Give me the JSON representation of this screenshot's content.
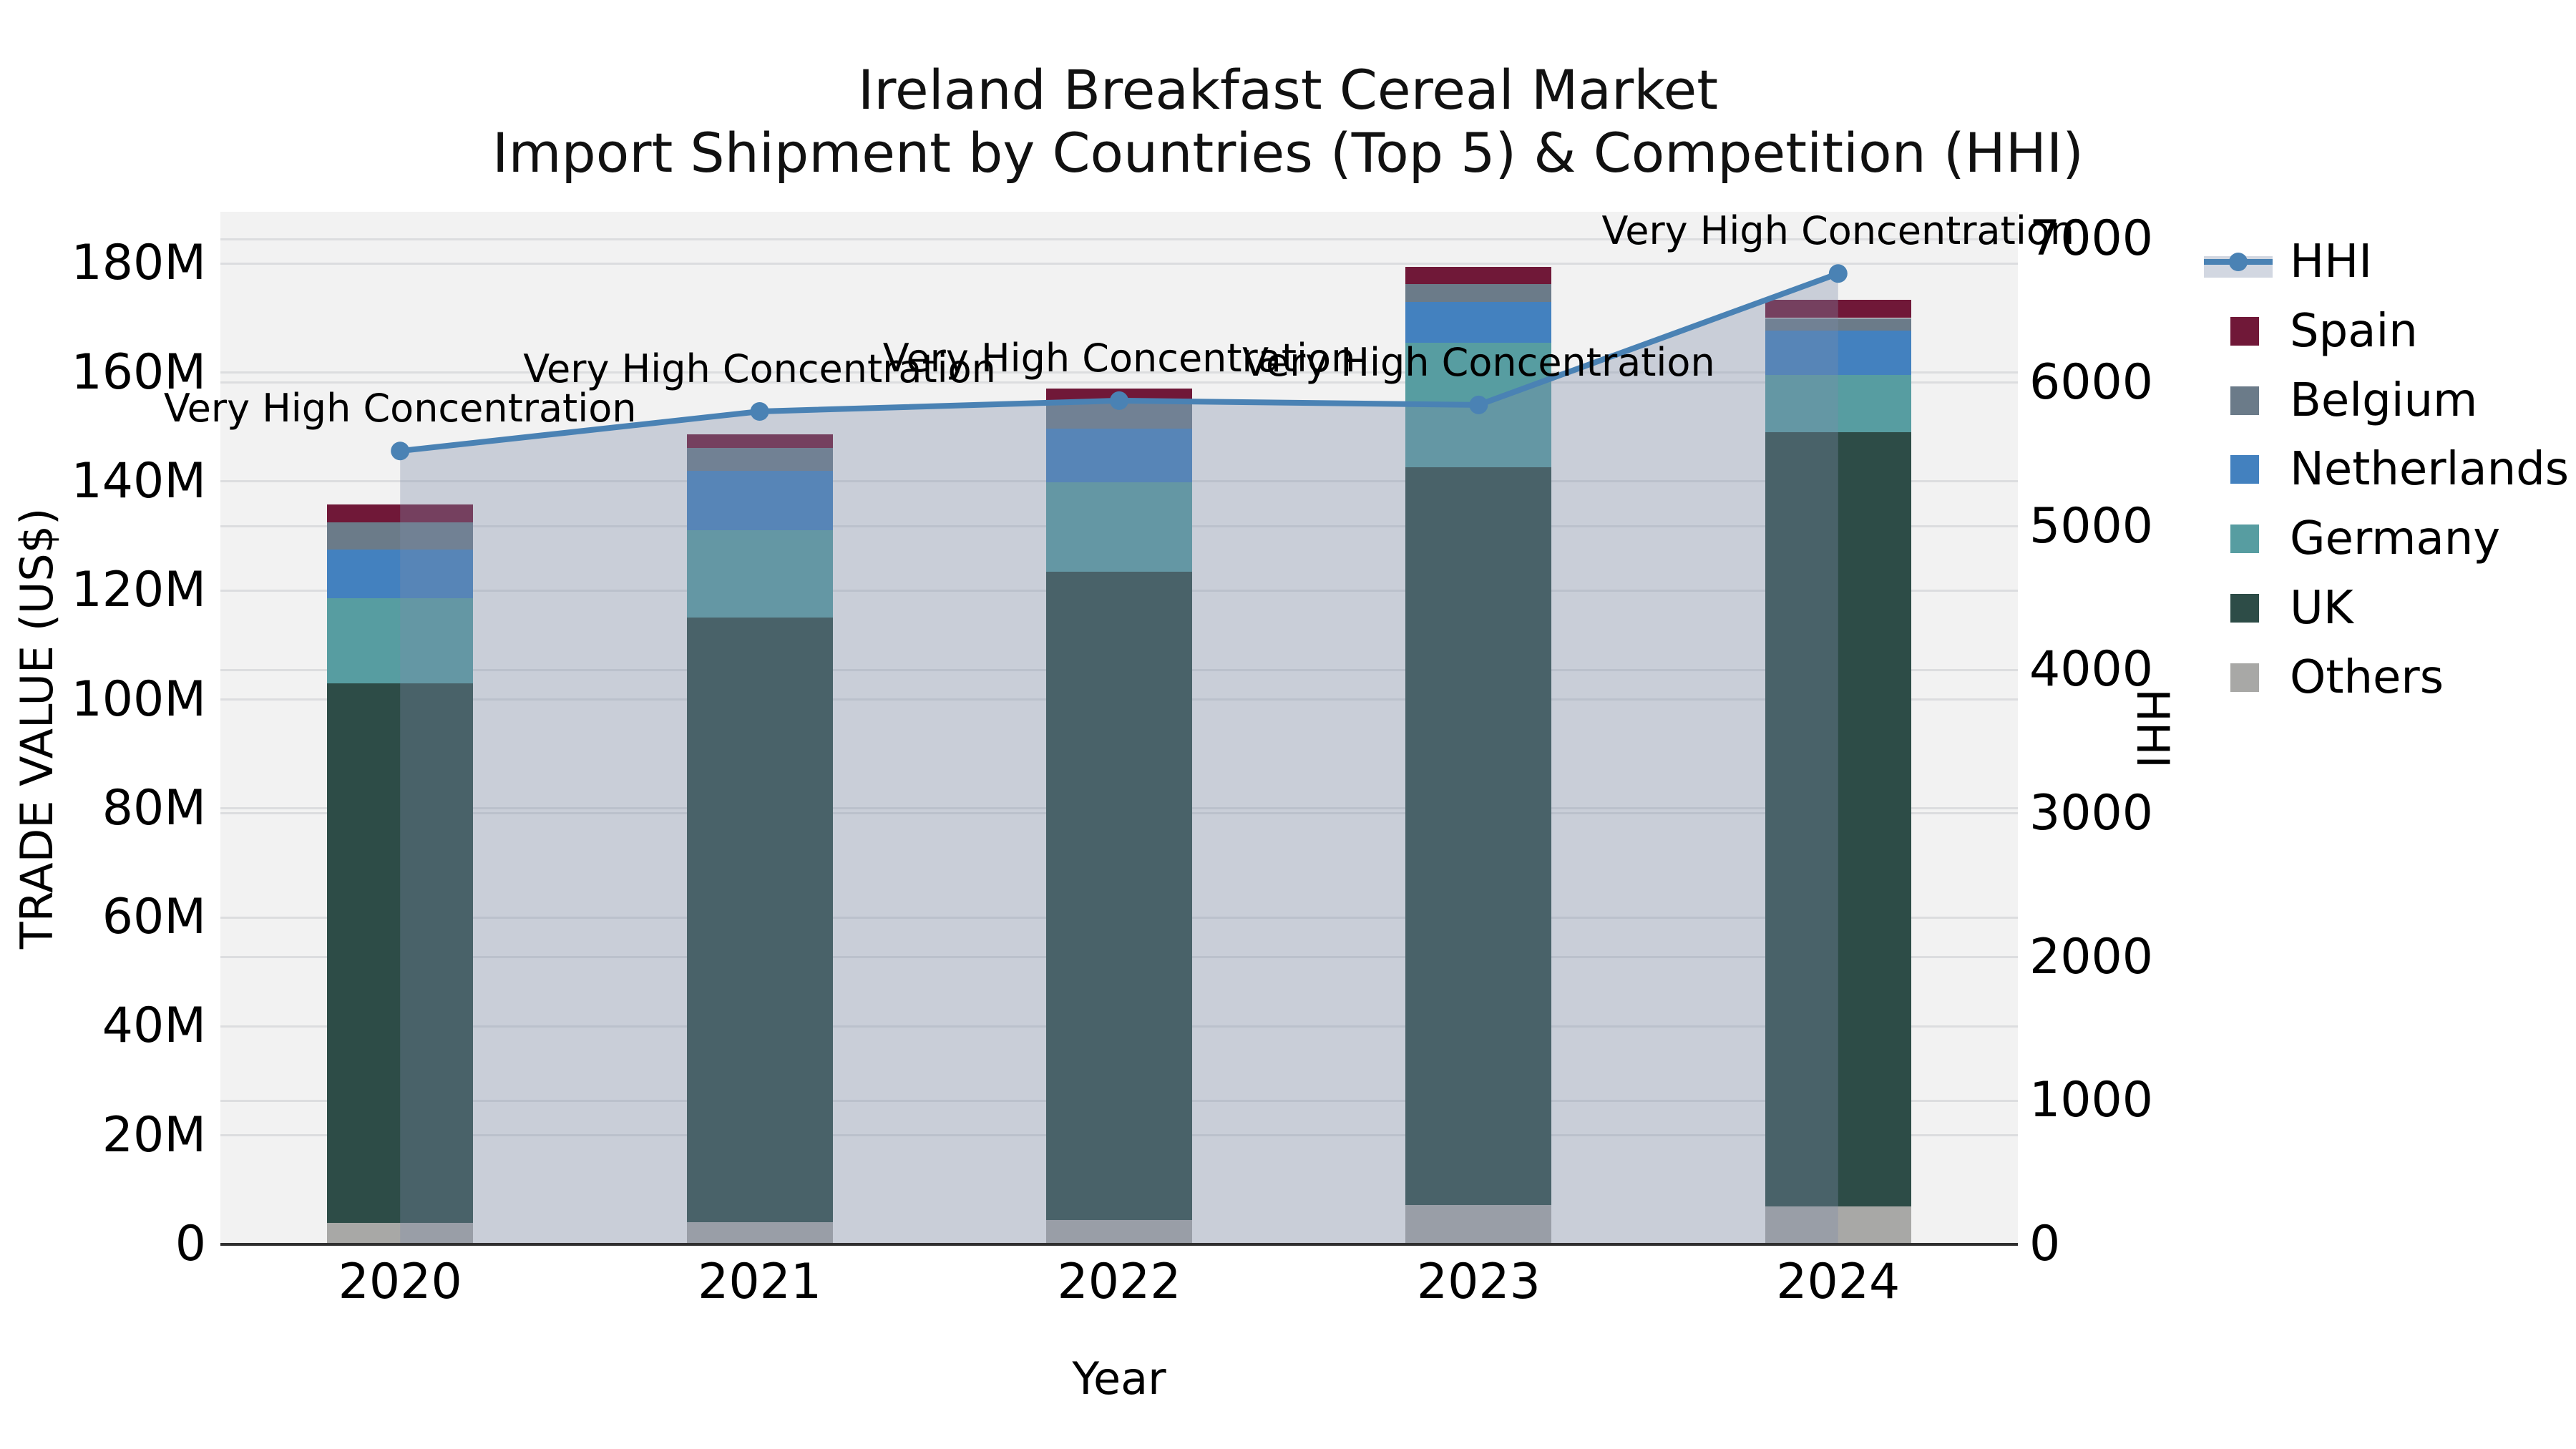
{
  "title": {
    "line1": "Ireland Breakfast Cereal Market",
    "line2": "Import Shipment by Countries (Top 5) & Competition (HHI)"
  },
  "axes": {
    "x_label": "Year",
    "y_left_label": "TRADE VALUE (US$)",
    "y_right_label": "HHI"
  },
  "chart_data": {
    "type": "stacked-bar+line",
    "categories": [
      "2020",
      "2021",
      "2022",
      "2023",
      "2024"
    ],
    "stack_order_bottom_to_top": [
      "Others",
      "UK",
      "Germany",
      "Netherlands",
      "Belgium",
      "Spain"
    ],
    "series": [
      {
        "name": "Others",
        "color": "#a8a8a6",
        "values": [
          4.0,
          4.1,
          4.5,
          7.2,
          7.0
        ]
      },
      {
        "name": "UK",
        "color": "#2d4c47",
        "values": [
          99.0,
          110.9,
          118.9,
          135.4,
          142.1
        ]
      },
      {
        "name": "Germany",
        "color": "#579da1",
        "values": [
          15.6,
          16.1,
          16.5,
          22.9,
          10.4
        ]
      },
      {
        "name": "Netherlands",
        "color": "#4381bf",
        "values": [
          8.9,
          10.9,
          9.8,
          7.5,
          8.2
        ]
      },
      {
        "name": "Belgium",
        "color": "#6b7b89",
        "values": [
          5.0,
          4.2,
          4.8,
          3.2,
          2.3
        ]
      },
      {
        "name": "Spain",
        "color": "#701838",
        "values": [
          3.3,
          2.5,
          2.6,
          3.2,
          3.3
        ]
      }
    ],
    "bar_totals_musd": [
      135.8,
      148.7,
      157.1,
      179.4,
      173.3
    ],
    "line_series": {
      "name": "HHI",
      "axis": "right",
      "color": "#4a82b4",
      "area_fill": "rgba(125,140,170,0.35)",
      "values": [
        5525,
        5800,
        5875,
        5845,
        6760
      ]
    },
    "point_annotations": [
      "Very High Concentration",
      "Very High Concentration",
      "Very High Concentration",
      "Very High Concentration",
      "Very High Concentration"
    ],
    "y_left_axis": {
      "unit": "US$ (millions)",
      "tick_labels": [
        "0",
        "20M",
        "40M",
        "60M",
        "80M",
        "100M",
        "120M",
        "140M",
        "160M",
        "180M"
      ],
      "tick_values": [
        0,
        20,
        40,
        60,
        80,
        100,
        120,
        140,
        160,
        180
      ],
      "max": 189.5
    },
    "y_right_axis": {
      "unit": "HHI index",
      "tick_labels": [
        "0",
        "1000",
        "2000",
        "3000",
        "4000",
        "5000",
        "6000",
        "7000"
      ],
      "tick_values": [
        0,
        1000,
        2000,
        3000,
        4000,
        5000,
        6000,
        7000
      ],
      "max": 7190
    },
    "grid": true,
    "legend_position": "right",
    "legend_order": [
      "HHI",
      "Spain",
      "Belgium",
      "Netherlands",
      "Germany",
      "UK",
      "Others"
    ]
  }
}
